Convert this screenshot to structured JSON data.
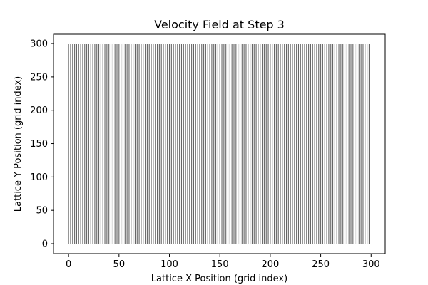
{
  "chart_data": {
    "type": "quiver",
    "title": "Velocity Field at Step 3",
    "xlabel": "Lattice X Position (grid index)",
    "ylabel": "Lattice Y Position (grid index)",
    "xlim": [
      -14.95,
      313.95
    ],
    "ylim": [
      -14.95,
      313.95
    ],
    "xticks": [
      0,
      50,
      100,
      150,
      200,
      250,
      300
    ],
    "yticks": [
      0,
      50,
      100,
      150,
      200,
      250,
      300
    ],
    "grid": {
      "x_start": 0,
      "x_end": 299,
      "x_step": 2,
      "y_start": 0,
      "y_end": 299
    },
    "vector_color": "#666666",
    "legend": "none",
    "show_grid": false
  }
}
